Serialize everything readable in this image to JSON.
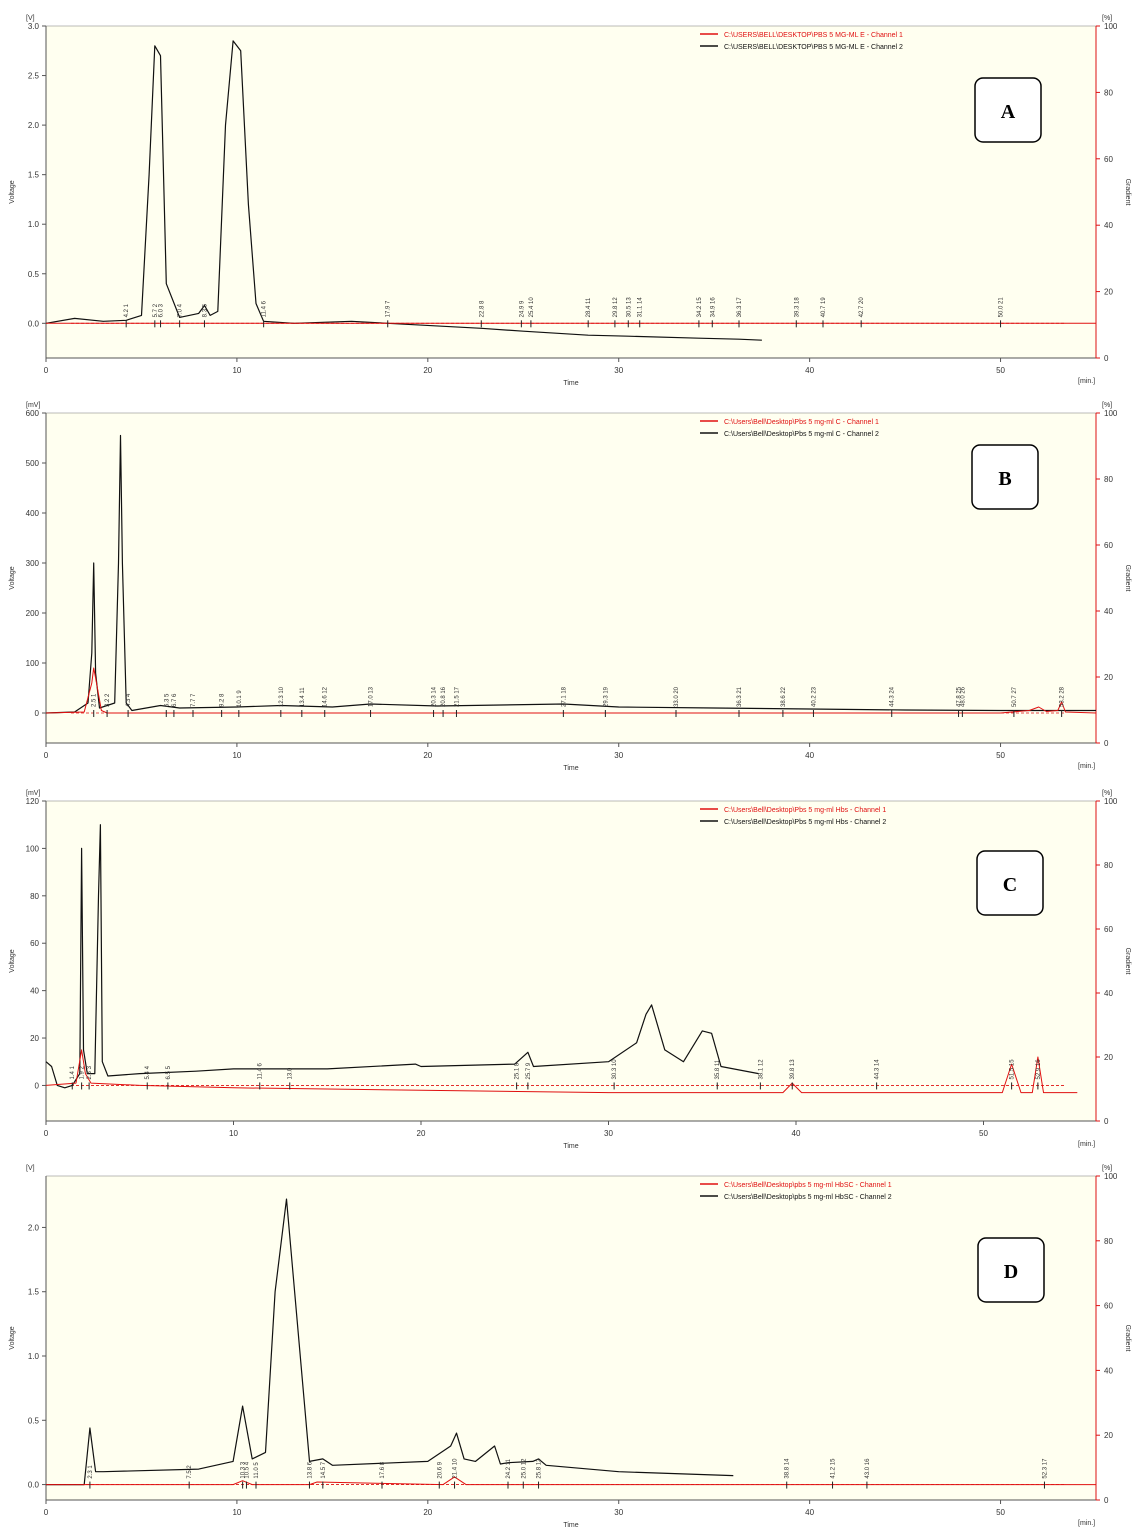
{
  "panels": [
    {
      "id": "A",
      "label": "A",
      "y_unit": "[V]",
      "y_ticks": [
        "0.0",
        "0.5",
        "1.0",
        "1.5",
        "2.0",
        "2.5",
        "3.0"
      ],
      "y_max": 3.0,
      "y_min": -0.35,
      "y_label": "Voltage",
      "x_label": "Time",
      "x_unit": "[min.]",
      "r_unit": "[%]",
      "r_ticks": [
        "0",
        "20",
        "40",
        "60",
        "80",
        "100"
      ],
      "r_label": "Gradient",
      "legend": [
        {
          "text": "C:\\USERS\\BELL\\DESKTOP\\PBS 5 MG-ML E -  Channel 1",
          "color": "#e01010"
        },
        {
          "text": "C:\\USERS\\BELL\\DESKTOP\\PBS 5 MG-ML E -  Channel 2",
          "color": "#111111"
        }
      ],
      "peak_labels": [
        {
          "t": 4.2,
          "text": "4.2  1"
        },
        {
          "t": 5.7,
          "text": "5.7 2"
        },
        {
          "t": 6.0,
          "text": "6.0 3"
        },
        {
          "t": 7.0,
          "text": "7.0  4"
        },
        {
          "t": 8.3,
          "text": "8.3 5"
        },
        {
          "t": 11.4,
          "text": "11.4  6"
        },
        {
          "t": 17.9,
          "text": "17.9  7"
        },
        {
          "t": 22.8,
          "text": "22.8  8"
        },
        {
          "t": 24.9,
          "text": "24.9  9"
        },
        {
          "t": 25.4,
          "text": "25.4 10"
        },
        {
          "t": 28.4,
          "text": "28.4  11"
        },
        {
          "t": 29.8,
          "text": "29.8 12"
        },
        {
          "t": 30.5,
          "text": "30.5 13"
        },
        {
          "t": 31.1,
          "text": "31.1 14"
        },
        {
          "t": 34.2,
          "text": "34.2 15"
        },
        {
          "t": 34.9,
          "text": "34.9 16"
        },
        {
          "t": 36.3,
          "text": "36.3  17"
        },
        {
          "t": 39.3,
          "text": "39.3  18"
        },
        {
          "t": 40.7,
          "text": "40.7 19"
        },
        {
          "t": 42.7,
          "text": "42.7 20"
        },
        {
          "t": 50.0,
          "text": "50.0  21"
        }
      ]
    },
    {
      "id": "B",
      "label": "B",
      "y_unit": "[mV]",
      "y_ticks": [
        "0",
        "100",
        "200",
        "300",
        "400",
        "500",
        "600"
      ],
      "y_max": 600,
      "y_min": -60,
      "y_label": "Voltage",
      "x_label": "Time",
      "x_unit": "[min.]",
      "r_unit": "[%]",
      "r_ticks": [
        "0",
        "20",
        "40",
        "60",
        "80",
        "100"
      ],
      "r_label": "Gradient",
      "legend": [
        {
          "text": "C:\\Users\\Bell\\Desktop\\Pbs 5 mg-ml C -  Channel 1",
          "color": "#e01010"
        },
        {
          "text": "C:\\Users\\Bell\\Desktop\\Pbs 5 mg-ml C -  Channel 2",
          "color": "#111111"
        }
      ],
      "peak_labels": [
        {
          "t": 2.5,
          "text": "2.5 1"
        },
        {
          "t": 3.2,
          "text": "3.2  2"
        },
        {
          "t": 4.3,
          "text": "4.3  4"
        },
        {
          "t": 6.3,
          "text": "6.3  5"
        },
        {
          "t": 6.7,
          "text": "6.7  6"
        },
        {
          "t": 7.7,
          "text": "7.7  7"
        },
        {
          "t": 9.2,
          "text": "9.2  8"
        },
        {
          "t": 10.1,
          "text": "10.1  9"
        },
        {
          "t": 12.3,
          "text": "12.3 10"
        },
        {
          "t": 13.4,
          "text": "13.4 11"
        },
        {
          "t": 14.6,
          "text": "14.6 12"
        },
        {
          "t": 17.0,
          "text": "17.0 13"
        },
        {
          "t": 20.3,
          "text": "20.3 14"
        },
        {
          "t": 20.8,
          "text": "20.8 16"
        },
        {
          "t": 21.5,
          "text": "21.5 17"
        },
        {
          "t": 27.1,
          "text": "27.1 18"
        },
        {
          "t": 29.3,
          "text": "29.3 19"
        },
        {
          "t": 33.0,
          "text": "33.0 20"
        },
        {
          "t": 36.3,
          "text": "36.3 21"
        },
        {
          "t": 38.6,
          "text": "38.6 22"
        },
        {
          "t": 40.2,
          "text": "40.2 23"
        },
        {
          "t": 44.3,
          "text": "44.3 24"
        },
        {
          "t": 47.8,
          "text": "47.8 25"
        },
        {
          "t": 48.0,
          "text": "48.0 26"
        },
        {
          "t": 50.7,
          "text": "50.7 27"
        },
        {
          "t": 53.2,
          "text": "53.2 28"
        }
      ]
    },
    {
      "id": "C",
      "label": "C",
      "y_unit": "[mV]",
      "y_ticks": [
        "0",
        "20",
        "40",
        "60",
        "80",
        "100",
        "120"
      ],
      "y_max": 120,
      "y_min": -15,
      "y_label": "Voltage",
      "x_label": "Time",
      "x_unit": "[min.]",
      "r_unit": "[%]",
      "r_ticks": [
        "0",
        "20",
        "40",
        "60",
        "80",
        "100"
      ],
      "r_label": "Gradient",
      "legend": [
        {
          "text": "C:\\Users\\Bell\\Desktop\\Pbs 5 mg-ml Hbs -  Channel 1",
          "color": "#e01010"
        },
        {
          "text": "C:\\Users\\Bell\\Desktop\\Pbs 5 mg-ml Hbs -  Channel 2",
          "color": "#111111"
        }
      ],
      "peak_labels": [
        {
          "t": 1.4,
          "text": "1.4  1"
        },
        {
          "t": 1.9,
          "text": "1.9 2"
        },
        {
          "t": 2.3,
          "text": "2.3 3"
        },
        {
          "t": 5.4,
          "text": "5.4  4"
        },
        {
          "t": 6.5,
          "text": "6.5  5"
        },
        {
          "t": 11.4,
          "text": "11.4  6"
        },
        {
          "t": 13.0,
          "text": "13.0"
        },
        {
          "t": 25.1,
          "text": "25.1  8"
        },
        {
          "t": 25.7,
          "text": "25.7  9"
        },
        {
          "t": 30.3,
          "text": "30.3 10"
        },
        {
          "t": 35.8,
          "text": "35.8 11"
        },
        {
          "t": 38.1,
          "text": "38.1 12"
        },
        {
          "t": 39.8,
          "text": "39.8  13"
        },
        {
          "t": 44.3,
          "text": "44.3  14"
        },
        {
          "t": 51.5,
          "text": "51.5  15"
        },
        {
          "t": 52.9,
          "text": "52.9  16"
        }
      ]
    },
    {
      "id": "D",
      "label": "D",
      "y_unit": "[V]",
      "y_ticks": [
        "0.0",
        "0.5",
        "1.0",
        "1.5",
        "2.0"
      ],
      "y_max": 2.4,
      "y_min": -0.12,
      "y_label": "Voltage",
      "x_label": "Time",
      "x_unit": "[min.]",
      "r_unit": "[%]",
      "r_ticks": [
        "0",
        "20",
        "40",
        "60",
        "80",
        "100"
      ],
      "r_label": "Gradient",
      "legend": [
        {
          "text": "C:\\Users\\Bell\\Desktop\\pbs 5 mg-ml HbSC -  Channel 1",
          "color": "#e01010"
        },
        {
          "text": "C:\\Users\\Bell\\Desktop\\pbs 5 mg-ml HbSC -  Channel 2",
          "color": "#111111"
        }
      ],
      "peak_labels": [
        {
          "t": 2.3,
          "text": "2.3  1"
        },
        {
          "t": 7.5,
          "text": "7.5  2"
        },
        {
          "t": 10.3,
          "text": "10.3  3"
        },
        {
          "t": 10.5,
          "text": "10.5  4"
        },
        {
          "t": 11.0,
          "text": "11.0  5"
        },
        {
          "t": 13.8,
          "text": "13.8  6"
        },
        {
          "t": 14.5,
          "text": "14.5  7"
        },
        {
          "t": 17.6,
          "text": "17.6  8"
        },
        {
          "t": 20.6,
          "text": "20.6  9"
        },
        {
          "t": 21.4,
          "text": "21.4 10"
        },
        {
          "t": 24.2,
          "text": "24.2  11"
        },
        {
          "t": 25.0,
          "text": "25.0 12"
        },
        {
          "t": 25.8,
          "text": "25.8 13"
        },
        {
          "t": 38.8,
          "text": "38.8  14"
        },
        {
          "t": 41.2,
          "text": "41.2  15"
        },
        {
          "t": 43.0,
          "text": "43.0  16"
        },
        {
          "t": 52.3,
          "text": "52.3  17"
        }
      ]
    }
  ],
  "x_ticks": [
    "0",
    "10",
    "20",
    "30",
    "40",
    "50"
  ],
  "chart_data": [
    {
      "type": "line",
      "panel": "A",
      "xlabel": "Time",
      "x_unit": "min.",
      "ylabel": "Voltage",
      "y_unit": "V",
      "xlim": [
        0,
        55
      ],
      "ylim": [
        -0.35,
        3.0
      ],
      "series": [
        {
          "name": "C:\\USERS\\BELL\\DESKTOP\\PBS 5 MG-ML E -  Channel 2",
          "color": "#111111",
          "x": [
            0,
            1.5,
            3,
            4.2,
            5.0,
            5.4,
            5.7,
            6.0,
            6.3,
            7.0,
            8.0,
            8.3,
            8.6,
            9.0,
            9.4,
            9.8,
            10.2,
            10.6,
            11.0,
            11.4,
            13,
            16,
            17.9,
            22.8,
            25,
            28.4,
            30.5,
            34.2,
            36.3,
            37.5
          ],
          "y": [
            0.0,
            0.05,
            0.02,
            0.03,
            0.08,
            1.5,
            2.8,
            2.7,
            0.4,
            0.06,
            0.1,
            0.18,
            0.08,
            0.12,
            2.0,
            2.85,
            2.75,
            1.2,
            0.2,
            0.02,
            0.0,
            0.02,
            0.0,
            -0.05,
            -0.08,
            -0.12,
            -0.13,
            -0.15,
            -0.16,
            -0.17
          ]
        },
        {
          "name": "C:\\USERS\\BELL\\DESKTOP\\PBS 5 MG-ML E -  Channel 1",
          "color": "#e01010",
          "x": [
            0,
            55
          ],
          "y": [
            0.0,
            0.0
          ]
        }
      ]
    },
    {
      "type": "line",
      "panel": "B",
      "xlabel": "Time",
      "x_unit": "min.",
      "ylabel": "Voltage",
      "y_unit": "mV",
      "xlim": [
        0,
        55
      ],
      "ylim": [
        -60,
        600
      ],
      "series": [
        {
          "name": "C:\\Users\\Bell\\Desktop\\Pbs 5 mg-ml C -  Channel 2",
          "color": "#111111",
          "x": [
            0,
            1.5,
            2.2,
            2.4,
            2.5,
            2.6,
            2.8,
            3.2,
            3.6,
            3.8,
            3.9,
            4.0,
            4.2,
            4.5,
            6,
            7,
            10,
            12.3,
            15,
            17,
            20.5,
            27.1,
            30,
            35,
            40,
            45,
            50,
            53,
            55
          ],
          "y": [
            0,
            2,
            20,
            120,
            300,
            80,
            10,
            15,
            20,
            300,
            555,
            300,
            20,
            5,
            15,
            10,
            12,
            15,
            12,
            18,
            14,
            18,
            12,
            10,
            8,
            6,
            5,
            5,
            5
          ]
        },
        {
          "name": "C:\\Users\\Bell\\Desktop\\Pbs 5 mg-ml C -  Channel 1",
          "color": "#e01010",
          "x": [
            0,
            2.0,
            2.4,
            2.5,
            2.6,
            2.9,
            3.2,
            10,
            20,
            30,
            40,
            50,
            51.5,
            52,
            52.4,
            53.0,
            53.2,
            53.4,
            55
          ],
          "y": [
            0,
            2,
            60,
            90,
            70,
            5,
            0,
            0,
            0,
            0,
            0,
            0,
            5,
            12,
            3,
            5,
            22,
            2,
            0
          ]
        }
      ]
    },
    {
      "type": "line",
      "panel": "C",
      "xlabel": "Time",
      "x_unit": "min.",
      "ylabel": "Voltage",
      "y_unit": "mV",
      "xlim": [
        0,
        56
      ],
      "ylim": [
        -15,
        120
      ],
      "series": [
        {
          "name": "C:\\Users\\Bell\\Desktop\\Pbs 5 mg-ml Hbs -  Channel 2",
          "color": "#111111",
          "x": [
            0,
            0.3,
            0.6,
            1.0,
            1.4,
            1.8,
            1.9,
            2.0,
            2.2,
            2.6,
            2.8,
            2.9,
            3.0,
            3.3,
            5,
            8,
            10,
            15,
            19.7,
            20,
            25,
            25.7,
            26,
            30,
            31.5,
            32,
            32.3,
            33,
            34,
            35,
            35.5,
            36,
            38
          ],
          "y": [
            10,
            8,
            0,
            -1,
            0,
            5,
            100,
            15,
            5,
            5,
            80,
            110,
            10,
            4,
            5,
            6,
            7,
            7,
            9,
            8,
            9,
            14,
            8,
            10,
            18,
            30,
            34,
            15,
            10,
            23,
            22,
            8,
            5
          ]
        },
        {
          "name": "C:\\Users\\Bell\\Desktop\\Pbs 5 mg-ml Hbs -  Channel 1",
          "color": "#e01010",
          "x": [
            0,
            1.6,
            1.9,
            2.1,
            2.4,
            5,
            10,
            20,
            30,
            39.3,
            39.8,
            40.3,
            45,
            51.0,
            51.5,
            52.0,
            52.6,
            52.9,
            53.2,
            55
          ],
          "y": [
            0,
            1,
            15,
            5,
            1,
            0,
            -1,
            -2,
            -3,
            -3,
            1,
            -3,
            -3,
            -3,
            9,
            -3,
            -3,
            12,
            -3,
            -3
          ]
        }
      ]
    },
    {
      "type": "line",
      "panel": "D",
      "xlabel": "Time",
      "x_unit": "min.",
      "ylabel": "Voltage",
      "y_unit": "V",
      "xlim": [
        0,
        55
      ],
      "ylim": [
        -0.12,
        2.4
      ],
      "series": [
        {
          "name": "C:\\Users\\Bell\\Desktop\\pbs 5 mg-ml HbSC -  Channel 2",
          "color": "#111111",
          "x": [
            0,
            2.0,
            2.3,
            2.6,
            3.0,
            8,
            9.8,
            10.3,
            10.8,
            11.5,
            12.0,
            12.6,
            13.2,
            13.8,
            14.5,
            15,
            20,
            21.2,
            21.5,
            21.9,
            22.5,
            23.5,
            23.8,
            24.2,
            25.5,
            25.8,
            26.2,
            30,
            36
          ],
          "y": [
            0,
            0.0,
            0.44,
            0.1,
            0.1,
            0.12,
            0.18,
            0.61,
            0.2,
            0.25,
            1.5,
            2.22,
            1.2,
            0.18,
            0.2,
            0.15,
            0.18,
            0.3,
            0.4,
            0.2,
            0.18,
            0.3,
            0.16,
            0.17,
            0.18,
            0.2,
            0.15,
            0.1,
            0.07
          ]
        },
        {
          "name": "C:\\Users\\Bell\\Desktop\\pbs 5 mg-ml HbSC -  Channel 1",
          "color": "#e01010",
          "x": [
            0,
            9.8,
            10.3,
            10.8,
            13.8,
            14.2,
            20.8,
            21.4,
            22.0,
            25,
            55
          ],
          "y": [
            0,
            0,
            0.03,
            0,
            0,
            0.02,
            0,
            0.06,
            0,
            0,
            0
          ]
        }
      ]
    }
  ]
}
